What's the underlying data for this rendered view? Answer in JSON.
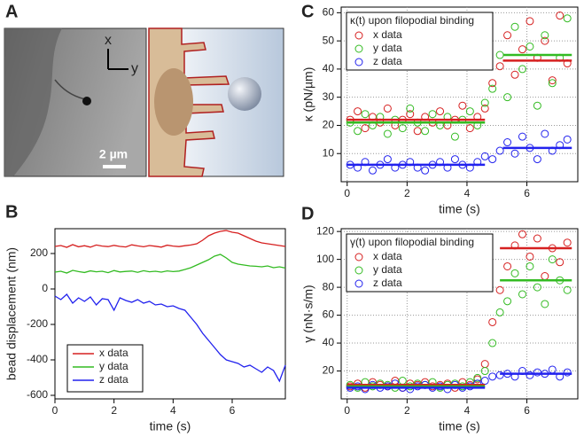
{
  "image_panel": {
    "label": "A",
    "axis_x": "x",
    "axis_y": "y",
    "scale_bar": "2 µm"
  },
  "chart_data": [
    {
      "type": "line",
      "panel_label": "B",
      "xlabel": "time (s)",
      "ylabel": "bead displacement (nm)",
      "xlim": [
        0,
        7.8
      ],
      "xticks": [
        0,
        2,
        4,
        6
      ],
      "ylim": [
        -620,
        340
      ],
      "yticks": [
        -600,
        -400,
        -200,
        0,
        200
      ],
      "grid": false,
      "legend": "lower left",
      "x": [
        0,
        0.2,
        0.4,
        0.6,
        0.8,
        1,
        1.2,
        1.4,
        1.6,
        1.8,
        2,
        2.2,
        2.4,
        2.6,
        2.8,
        3,
        3.2,
        3.4,
        3.6,
        3.8,
        4,
        4.2,
        4.4,
        4.6,
        4.8,
        5,
        5.2,
        5.4,
        5.6,
        5.8,
        6,
        6.2,
        6.4,
        6.6,
        6.8,
        7,
        7.2,
        7.4,
        7.6,
        7.8
      ],
      "series": [
        {
          "name": "x data",
          "color": "#d62020",
          "values": [
            240,
            245,
            235,
            250,
            238,
            244,
            236,
            248,
            242,
            239,
            246,
            240,
            237,
            249,
            243,
            238,
            245,
            241,
            236,
            247,
            242,
            239,
            244,
            248,
            255,
            275,
            300,
            315,
            325,
            330,
            320,
            315,
            300,
            285,
            270,
            260,
            255,
            250,
            245,
            240
          ]
        },
        {
          "name": "y data",
          "color": "#33bb22",
          "values": [
            95,
            100,
            90,
            105,
            98,
            93,
            102,
            97,
            100,
            92,
            104,
            96,
            99,
            101,
            94,
            103,
            97,
            100,
            95,
            102,
            98,
            101,
            110,
            120,
            135,
            150,
            165,
            185,
            195,
            175,
            150,
            140,
            135,
            130,
            128,
            125,
            130,
            120,
            125,
            118
          ]
        },
        {
          "name": "z data",
          "color": "#2222ee",
          "values": [
            -40,
            -60,
            -30,
            -80,
            -50,
            -70,
            -45,
            -90,
            -55,
            -60,
            -120,
            -50,
            -65,
            -75,
            -60,
            -80,
            -70,
            -90,
            -85,
            -100,
            -95,
            -110,
            -120,
            -160,
            -200,
            -250,
            -290,
            -330,
            -370,
            -400,
            -410,
            -420,
            -440,
            -430,
            -450,
            -470,
            -440,
            -460,
            -520,
            -430
          ]
        }
      ]
    },
    {
      "type": "scatter",
      "panel_label": "C",
      "legend_title": "κ(t) upon filopodial binding",
      "xlabel": "time (s)",
      "ylabel": "κ (pN/µm)",
      "xlim": [
        -0.2,
        7.7
      ],
      "xticks": [
        0,
        2,
        4,
        6
      ],
      "ylim": [
        0,
        62
      ],
      "yticks": [
        10,
        20,
        30,
        40,
        50,
        60
      ],
      "grid": true,
      "legend": "upper left",
      "x": [
        0.1,
        0.35,
        0.6,
        0.85,
        1.1,
        1.35,
        1.6,
        1.85,
        2.1,
        2.35,
        2.6,
        2.85,
        3.1,
        3.35,
        3.6,
        3.85,
        4.1,
        4.35,
        4.6,
        4.85,
        5.1,
        5.35,
        5.6,
        5.85,
        6.1,
        6.35,
        6.6,
        6.85,
        7.1,
        7.35
      ],
      "series": [
        {
          "name": "x data",
          "color": "#d62020",
          "values": [
            22,
            25,
            19,
            23,
            21,
            26,
            20,
            22,
            24,
            18,
            23,
            21,
            25,
            20,
            22,
            27,
            19,
            23,
            26,
            35,
            41,
            52,
            38,
            47,
            57,
            44,
            50,
            36,
            59,
            42
          ]
        },
        {
          "name": "y data",
          "color": "#33bb22",
          "values": [
            21,
            18,
            24,
            20,
            23,
            17,
            22,
            19,
            26,
            21,
            18,
            24,
            20,
            23,
            16,
            22,
            25,
            20,
            28,
            33,
            45,
            30,
            55,
            40,
            48,
            27,
            52,
            35,
            44,
            58
          ]
        },
        {
          "name": "z data",
          "color": "#2222ee",
          "values": [
            6,
            5,
            7,
            4,
            6,
            8,
            5,
            6,
            7,
            5,
            4,
            6,
            7,
            5,
            8,
            6,
            5,
            7,
            9,
            8,
            11,
            14,
            10,
            16,
            12,
            8,
            17,
            11,
            13,
            15
          ]
        }
      ],
      "fits": [
        {
          "color": "#d62020",
          "x": [
            0,
            4.6
          ],
          "values": [
            22,
            22
          ]
        },
        {
          "color": "#d62020",
          "x": [
            5.2,
            7.5
          ],
          "values": [
            43,
            43
          ]
        },
        {
          "color": "#33bb22",
          "x": [
            0,
            4.6
          ],
          "values": [
            21,
            21
          ]
        },
        {
          "color": "#33bb22",
          "x": [
            5.2,
            7.5
          ],
          "values": [
            45,
            45
          ]
        },
        {
          "color": "#2222ee",
          "x": [
            0,
            4.6
          ],
          "values": [
            6,
            6
          ]
        },
        {
          "color": "#2222ee",
          "x": [
            5.2,
            7.5
          ],
          "values": [
            12,
            12
          ]
        }
      ]
    },
    {
      "type": "scatter",
      "panel_label": "D",
      "legend_title": "γ(t) upon filopodial binding",
      "xlabel": "time (s)",
      "ylabel": "γ (nN·s/m)",
      "xlim": [
        -0.2,
        7.7
      ],
      "xticks": [
        0,
        2,
        4,
        6
      ],
      "ylim": [
        0,
        122
      ],
      "yticks": [
        20,
        40,
        60,
        80,
        100,
        120
      ],
      "grid": true,
      "legend": "upper left",
      "x": [
        0.1,
        0.35,
        0.6,
        0.85,
        1.1,
        1.35,
        1.6,
        1.85,
        2.1,
        2.35,
        2.6,
        2.85,
        3.1,
        3.35,
        3.6,
        3.85,
        4.1,
        4.35,
        4.6,
        4.85,
        5.1,
        5.35,
        5.6,
        5.85,
        6.1,
        6.35,
        6.6,
        6.85,
        7.1,
        7.35
      ],
      "series": [
        {
          "name": "x data",
          "color": "#d62020",
          "values": [
            9,
            11,
            8,
            12,
            10,
            9,
            13,
            8,
            11,
            10,
            12,
            9,
            10,
            11,
            8,
            12,
            10,
            14,
            25,
            55,
            78,
            95,
            110,
            118,
            102,
            115,
            88,
            108,
            98,
            112
          ]
        },
        {
          "name": "y data",
          "color": "#33bb22",
          "values": [
            10,
            8,
            12,
            9,
            11,
            10,
            8,
            13,
            9,
            11,
            10,
            12,
            8,
            10,
            11,
            9,
            12,
            15,
            20,
            40,
            62,
            70,
            90,
            75,
            95,
            80,
            68,
            100,
            85,
            78
          ]
        },
        {
          "name": "z data",
          "color": "#2222ee",
          "values": [
            8,
            9,
            7,
            10,
            8,
            9,
            11,
            8,
            7,
            9,
            10,
            8,
            9,
            7,
            10,
            8,
            9,
            11,
            13,
            16,
            17,
            18,
            16,
            20,
            17,
            19,
            18,
            21,
            16,
            19
          ]
        }
      ],
      "fits": [
        {
          "color": "#d62020",
          "x": [
            0,
            4.6
          ],
          "values": [
            10,
            10
          ]
        },
        {
          "color": "#d62020",
          "x": [
            5.1,
            7.5
          ],
          "values": [
            108,
            108
          ]
        },
        {
          "color": "#33bb22",
          "x": [
            0,
            4.6
          ],
          "values": [
            9,
            9
          ]
        },
        {
          "color": "#33bb22",
          "x": [
            5.1,
            7.5
          ],
          "values": [
            85,
            85
          ]
        },
        {
          "color": "#2222ee",
          "x": [
            0,
            4.6
          ],
          "values": [
            8,
            8
          ]
        },
        {
          "color": "#2222ee",
          "x": [
            5.1,
            7.5
          ],
          "values": [
            18,
            18
          ]
        }
      ]
    }
  ]
}
